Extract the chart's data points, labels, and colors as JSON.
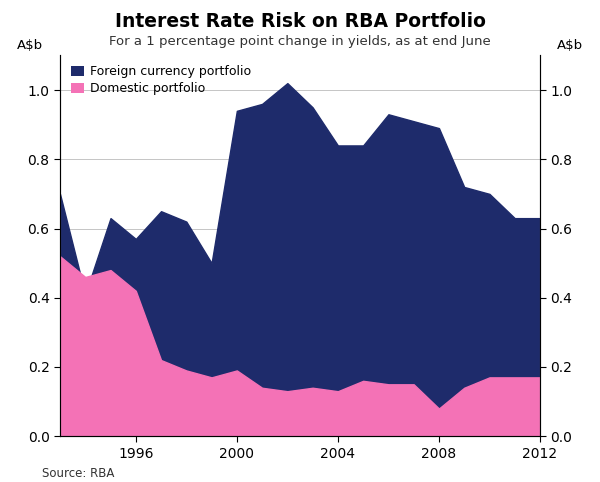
{
  "title": "Interest Rate Risk on RBA Portfolio",
  "subtitle": "For a 1 percentage point change in yields, as at end June",
  "ylabel": "A$b",
  "source": "Source: RBA",
  "years": [
    1993,
    1994,
    1995,
    1996,
    1997,
    1998,
    1999,
    2000,
    2001,
    2002,
    2003,
    2004,
    2005,
    2006,
    2007,
    2008,
    2009,
    2010,
    2011,
    2012
  ],
  "foreign_total": [
    0.7,
    0.41,
    0.63,
    0.57,
    0.65,
    0.62,
    0.5,
    0.94,
    0.96,
    1.02,
    0.95,
    0.84,
    0.84,
    0.93,
    0.91,
    0.89,
    0.72,
    0.7,
    0.63,
    0.63
  ],
  "domestic": [
    0.52,
    0.46,
    0.48,
    0.42,
    0.22,
    0.19,
    0.17,
    0.19,
    0.14,
    0.13,
    0.14,
    0.13,
    0.16,
    0.15,
    0.15,
    0.08,
    0.14,
    0.17,
    0.17,
    0.17
  ],
  "foreign_color": "#1e2b6b",
  "domestic_color": "#f472b6",
  "ylim": [
    0.0,
    1.1
  ],
  "yticks": [
    0.0,
    0.2,
    0.4,
    0.6,
    0.8,
    1.0
  ],
  "xticks": [
    1996,
    2000,
    2004,
    2008,
    2012
  ],
  "legend_items": [
    "Foreign currency portfolio",
    "Domestic portfolio"
  ],
  "bg_color": "#ffffff",
  "grid_color": "#bbbbbb"
}
